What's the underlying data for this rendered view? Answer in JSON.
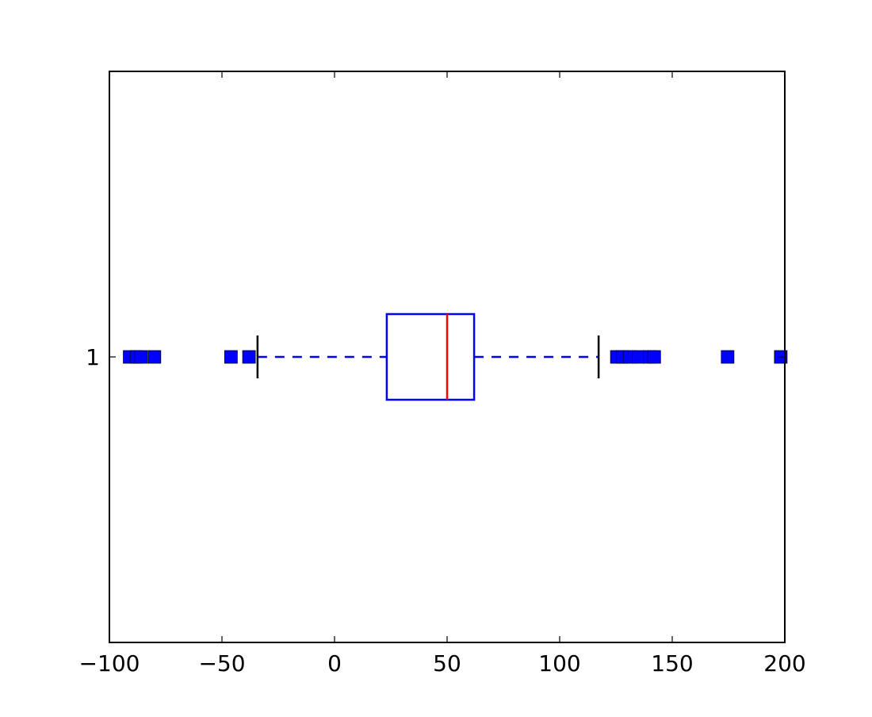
{
  "chart_data": {
    "type": "boxplot",
    "orientation": "horizontal",
    "title": "",
    "xlabel": "",
    "ylabel": "",
    "xlim": [
      -100,
      200
    ],
    "ylim": [
      0.5,
      1.5
    ],
    "xticks": [
      -100,
      -50,
      0,
      50,
      100,
      150,
      200
    ],
    "xtick_labels": [
      "−100",
      "−50",
      "0",
      "50",
      "100",
      "150",
      "200"
    ],
    "yticks": [
      1
    ],
    "ytick_labels": [
      "1"
    ],
    "grid": false,
    "boxes": [
      {
        "position": 1,
        "q1": 23.2,
        "median": 50.0,
        "q3": 62.0,
        "whisker_low": -34.2,
        "whisker_high": 117.3,
        "box_width": 0.15,
        "outliers": [
          -91,
          -88,
          -86,
          -80,
          -46,
          -38,
          125.4,
          128,
          131,
          135,
          140,
          142,
          174.6,
          198.2
        ]
      }
    ],
    "colors": {
      "box": "#0000ff",
      "median": "#ff0000",
      "whisker_cap": "#000000",
      "outlier": "#0000ff"
    }
  }
}
